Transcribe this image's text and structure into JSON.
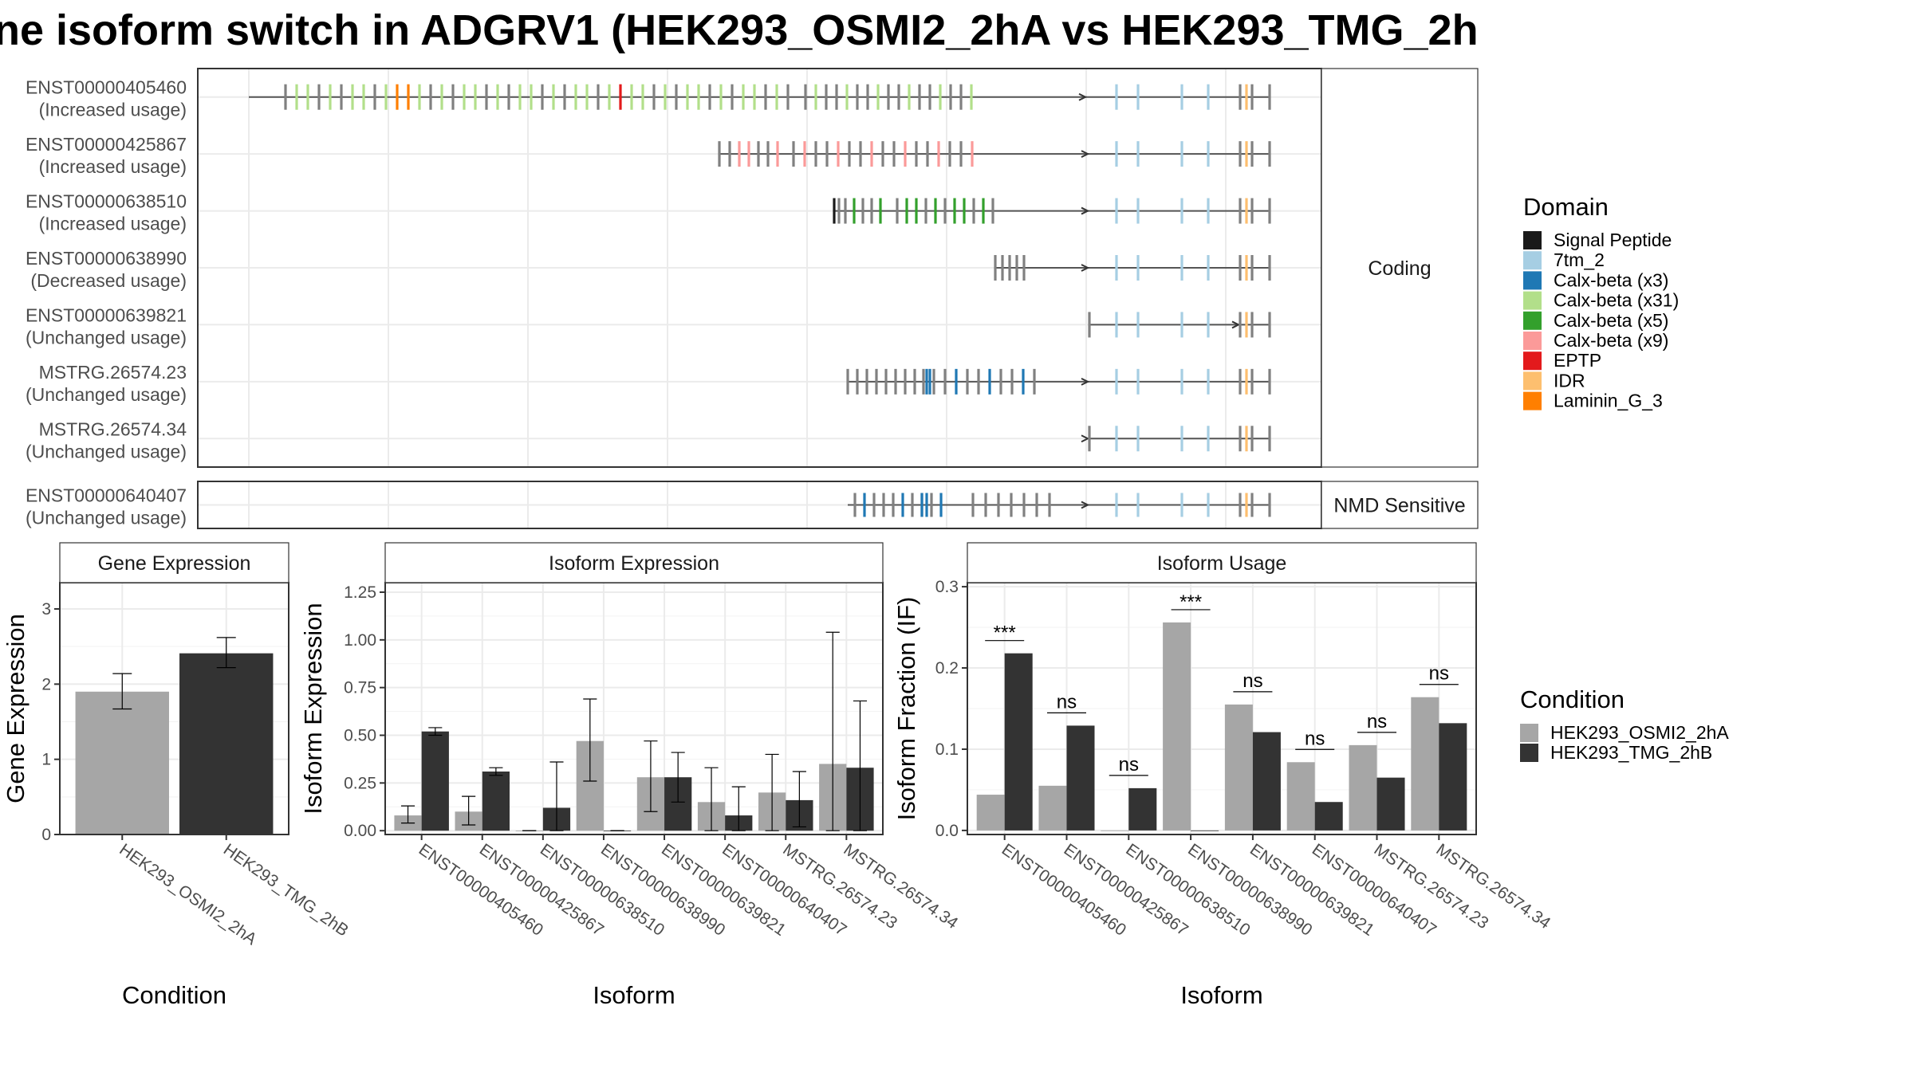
{
  "title": "ne isoform switch in ADGRV1 (HEK293_OSMI2_2hA vs HEK293_TMG_2h",
  "colors": {
    "cond1": "#a6a6a6",
    "cond2": "#333333",
    "grid": "#ebebeb",
    "panel_border": "#333333",
    "exon_default": "#808080"
  },
  "transcript_panel": {
    "group_labels": [
      "Coding",
      "NMD Sensitive"
    ],
    "transcripts": [
      {
        "id": "ENST00000405460",
        "usage": "(Increased usage)",
        "group": "Coding"
      },
      {
        "id": "ENST00000425867",
        "usage": "(Increased usage)",
        "group": "Coding"
      },
      {
        "id": "ENST00000638510",
        "usage": "(Increased usage)",
        "group": "Coding"
      },
      {
        "id": "ENST00000638990",
        "usage": "(Decreased usage)",
        "group": "Coding"
      },
      {
        "id": "ENST00000639821",
        "usage": "(Unchanged usage)",
        "group": "Coding"
      },
      {
        "id": "MSTRG.26574.23",
        "usage": "(Unchanged usage)",
        "group": "Coding"
      },
      {
        "id": "MSTRG.26574.34",
        "usage": "(Unchanged usage)",
        "group": "Coding"
      },
      {
        "id": "ENST00000640407",
        "usage": "(Unchanged usage)",
        "group": "NMD Sensitive"
      }
    ]
  },
  "domain_legend": {
    "title": "Domain",
    "items": [
      {
        "name": "Signal Peptide",
        "color": "#1a1a1a"
      },
      {
        "name": "7tm_2",
        "color": "#a6cee3"
      },
      {
        "name": "Calx-beta (x3)",
        "color": "#1f78b4"
      },
      {
        "name": "Calx-beta (x31)",
        "color": "#b2df8a"
      },
      {
        "name": "Calx-beta (x5)",
        "color": "#33a02c"
      },
      {
        "name": "Calx-beta (x9)",
        "color": "#fb9a99"
      },
      {
        "name": "EPTP",
        "color": "#e31a1c"
      },
      {
        "name": "IDR",
        "color": "#fdbf6f"
      },
      {
        "name": "Laminin_G_3",
        "color": "#ff7f00"
      }
    ]
  },
  "condition_legend": {
    "title": "Condition",
    "items": [
      {
        "name": "HEK293_OSMI2_2hA",
        "color": "#a6a6a6"
      },
      {
        "name": "HEK293_TMG_2hB",
        "color": "#333333"
      }
    ]
  },
  "chart_data": [
    {
      "type": "bar",
      "title": "Gene Expression",
      "xlabel": "Condition",
      "ylabel": "Gene Expression",
      "ylim": [
        0,
        3.35
      ],
      "yticks": [
        "0",
        "1",
        "2",
        "3"
      ],
      "categories": [
        "HEK293_OSMI2_2hA",
        "HEK293_TMG_2hB"
      ],
      "values": [
        1.9,
        2.41
      ],
      "error_low": [
        1.67,
        2.22
      ],
      "error_high": [
        2.14,
        2.62
      ]
    },
    {
      "type": "bar",
      "title": "Isoform Expression",
      "xlabel": "Isoform",
      "ylabel": "Isoform Expression",
      "ylim": [
        -0.02,
        1.3
      ],
      "yticks": [
        "0.00",
        "0.25",
        "0.50",
        "0.75",
        "1.00",
        "1.25"
      ],
      "categories": [
        "ENST00000405460",
        "ENST00000425867",
        "ENST00000638510",
        "ENST00000638990",
        "ENST00000639821",
        "ENST00000640407",
        "MSTRG.26574.23",
        "MSTRG.26574.34"
      ],
      "series": [
        {
          "name": "HEK293_OSMI2_2hA",
          "values": [
            0.08,
            0.1,
            0.0,
            0.47,
            0.28,
            0.15,
            0.2,
            0.35
          ],
          "error_low": [
            0.04,
            0.03,
            0.0,
            0.26,
            0.1,
            0.0,
            0.0,
            0.0
          ],
          "error_high": [
            0.13,
            0.18,
            0.0,
            0.69,
            0.47,
            0.33,
            0.4,
            1.04
          ]
        },
        {
          "name": "HEK293_TMG_2hB",
          "values": [
            0.52,
            0.31,
            0.12,
            0.0,
            0.28,
            0.08,
            0.16,
            0.33
          ],
          "error_low": [
            0.5,
            0.29,
            0.0,
            0.0,
            0.15,
            0.0,
            0.02,
            0.0
          ],
          "error_high": [
            0.54,
            0.33,
            0.36,
            0.0,
            0.41,
            0.23,
            0.31,
            0.68
          ]
        }
      ]
    },
    {
      "type": "bar",
      "title": "Isoform Usage",
      "xlabel": "Isoform",
      "ylabel": "Isoform Fraction (IF)",
      "ylim": [
        -0.005,
        0.305
      ],
      "yticks": [
        "0.0",
        "0.1",
        "0.2",
        "0.3"
      ],
      "categories": [
        "ENST00000405460",
        "ENST00000425867",
        "ENST00000638510",
        "ENST00000638990",
        "ENST00000639821",
        "ENST00000640407",
        "MSTRG.26574.23",
        "MSTRG.26574.34"
      ],
      "series": [
        {
          "name": "HEK293_OSMI2_2hA",
          "values": [
            0.044,
            0.055,
            0.0,
            0.256,
            0.155,
            0.084,
            0.105,
            0.164
          ]
        },
        {
          "name": "HEK293_TMG_2hB",
          "values": [
            0.218,
            0.129,
            0.052,
            0.0,
            0.121,
            0.035,
            0.065,
            0.132
          ]
        }
      ],
      "significance": [
        "***",
        "ns",
        "ns",
        "***",
        "ns",
        "ns",
        "ns",
        "ns"
      ]
    }
  ]
}
